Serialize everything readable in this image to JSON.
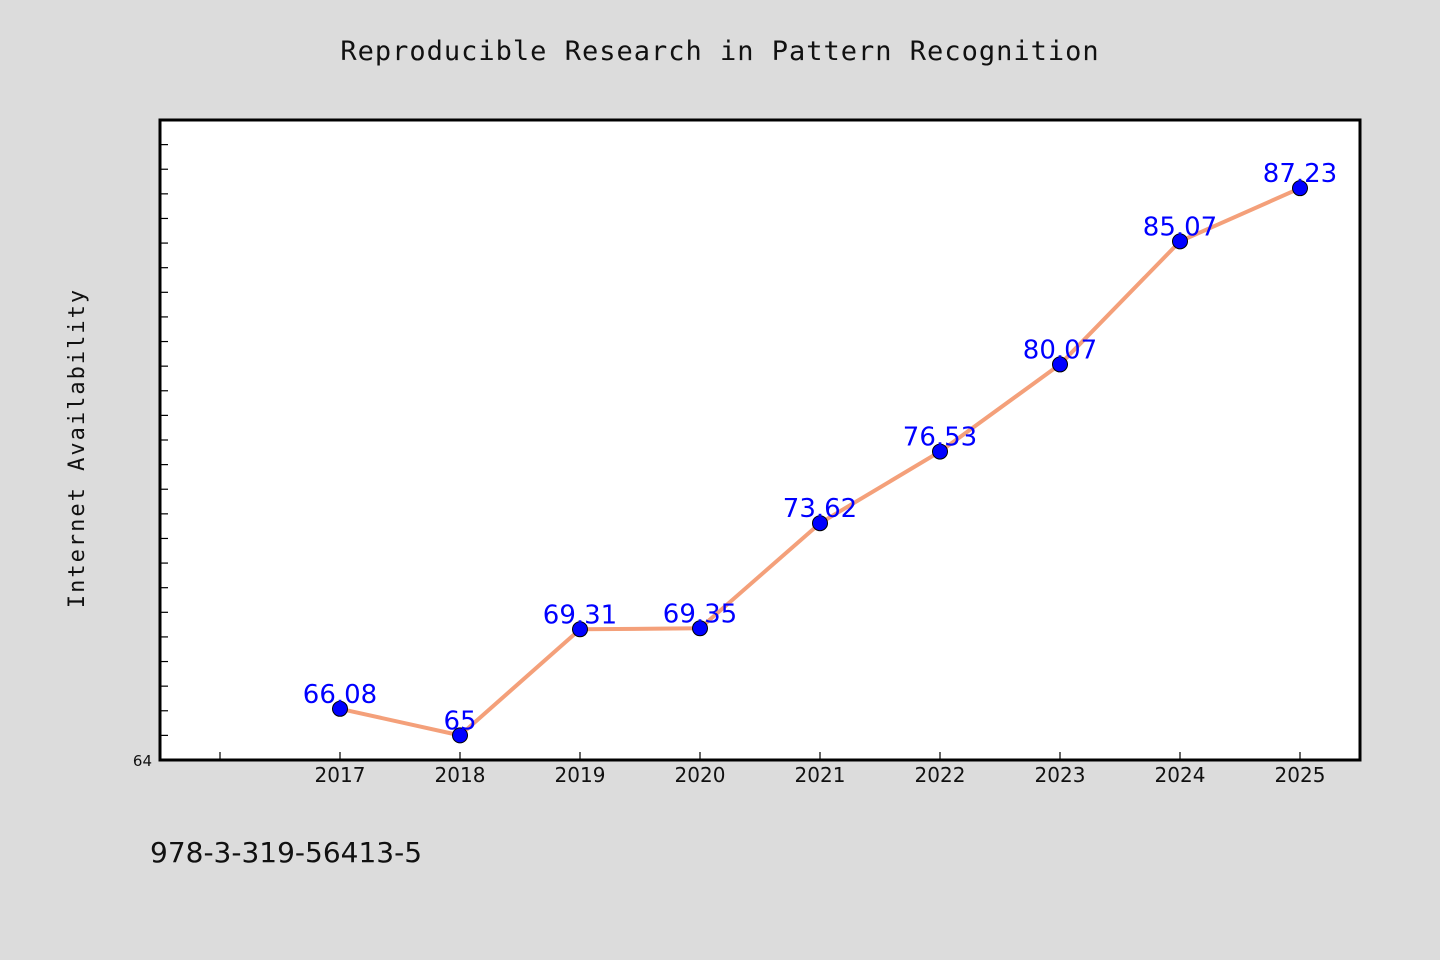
{
  "chart_data": {
    "type": "line",
    "title": "Reproducible Research in Pattern Recognition",
    "xlabel": "",
    "ylabel": "Internet Availability",
    "categories": [
      "2017",
      "2018",
      "2019",
      "2020",
      "2021",
      "2022",
      "2023",
      "2024",
      "2025"
    ],
    "series": [
      {
        "values": [
          66.08,
          65,
          69.31,
          69.35,
          73.62,
          76.53,
          80.07,
          85.07,
          87.23
        ],
        "labels": [
          "66.08",
          "65",
          "69.31",
          "69.35",
          "73.62",
          "76.53",
          "80.07",
          "85.07",
          "87.23"
        ],
        "line_color": "#f4a07a",
        "marker_color": "#0000ff"
      }
    ],
    "ylim": [
      64,
      90
    ],
    "y_tick_labels": [
      "64"
    ],
    "grid": false,
    "legend": "none",
    "background": "#dcdcdc",
    "plot_background": "#ffffff"
  },
  "footnote": "978-3-319-56413-5"
}
